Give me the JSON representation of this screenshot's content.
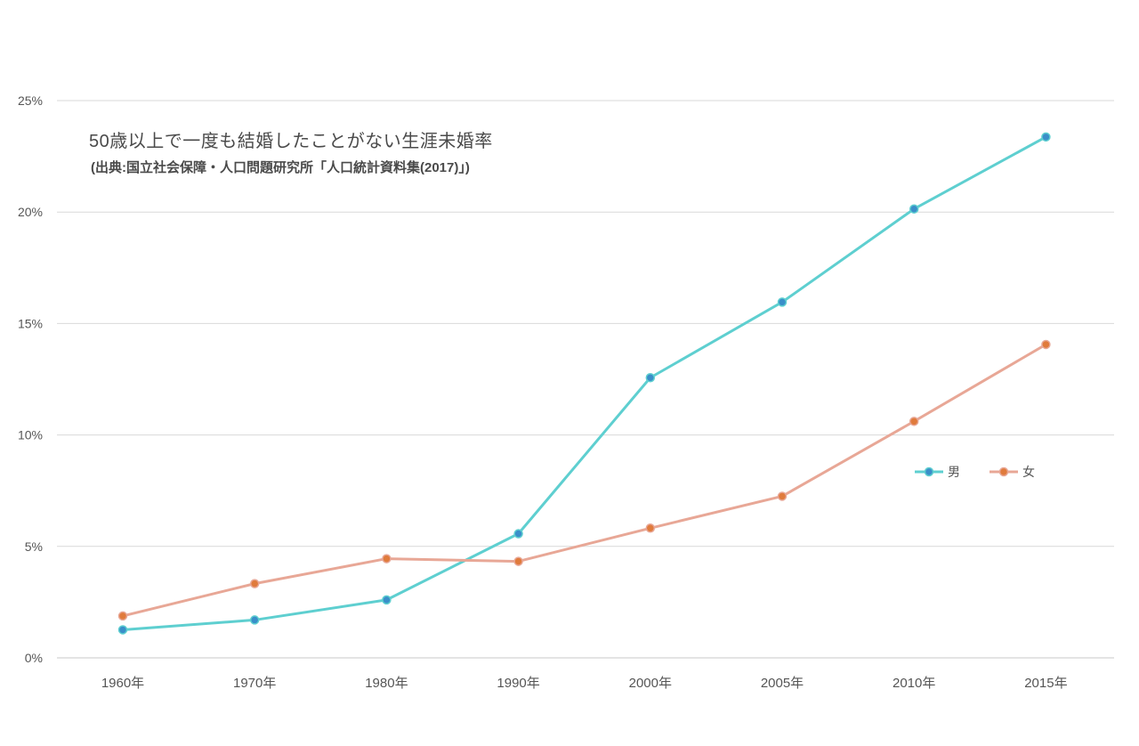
{
  "chart_data": {
    "type": "line",
    "title": "50歳以上で一度も結婚したことがない生涯未婚率",
    "subtitle": "(出典:国立社会保障・人口問題研究所「人口統計資料集(2017)」)",
    "categories": [
      "1960年",
      "1970年",
      "1980年",
      "1990年",
      "2000年",
      "2005年",
      "2010年",
      "2015年"
    ],
    "series": [
      {
        "name": "男",
        "color": "#5ecfd0",
        "marker_color": "#3a8fc9",
        "values": [
          1.26,
          1.7,
          2.6,
          5.57,
          12.57,
          15.96,
          20.14,
          23.37
        ]
      },
      {
        "name": "女",
        "color": "#e8a796",
        "marker_color": "#e07b3c",
        "values": [
          1.88,
          3.33,
          4.45,
          4.33,
          5.82,
          7.25,
          10.61,
          14.06
        ]
      }
    ],
    "ylim": [
      0,
      25
    ],
    "yticks": [
      "0%",
      "5%",
      "10%",
      "15%",
      "20%",
      "25%"
    ],
    "ytick_values": [
      0,
      5,
      10,
      15,
      20,
      25
    ],
    "grid": true,
    "legend_position": "right"
  }
}
